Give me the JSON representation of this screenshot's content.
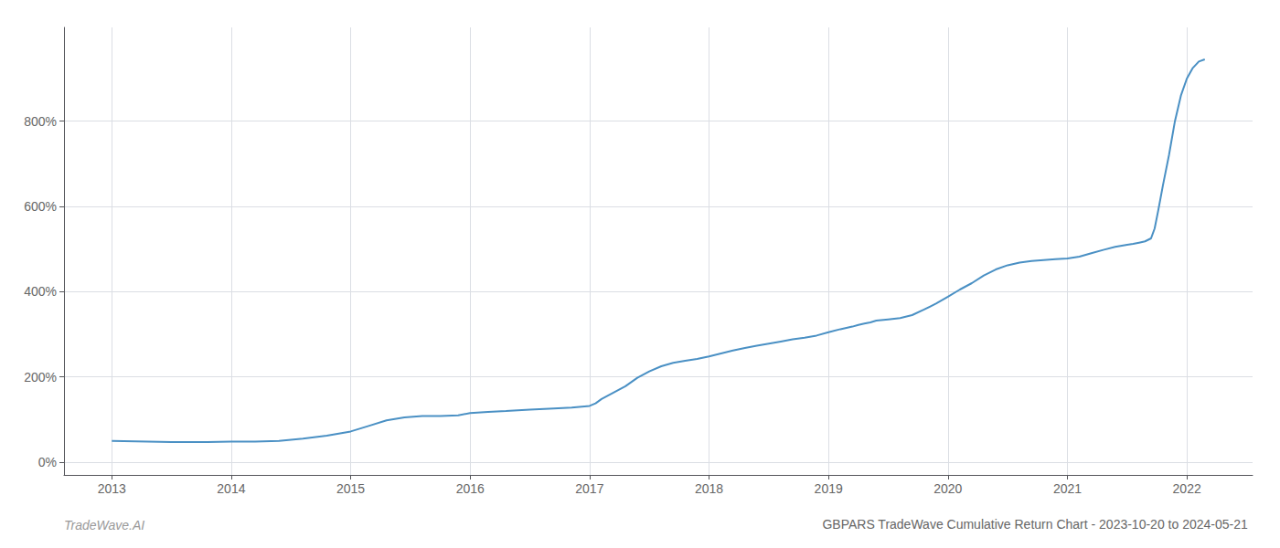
{
  "chart_data": {
    "type": "line",
    "title": "GBPARS TradeWave Cumulative Return Chart - 2023-10-20 to 2024-05-21",
    "annotations": [
      "TradeWave.AI"
    ],
    "color": "#4a90c4",
    "grid": true,
    "x": [
      2013.0,
      2013.2,
      2013.5,
      2013.8,
      2014.0,
      2014.2,
      2014.4,
      2014.6,
      2014.8,
      2015.0,
      2015.15,
      2015.3,
      2015.45,
      2015.6,
      2015.75,
      2015.9,
      2016.0,
      2016.15,
      2016.3,
      2016.5,
      2016.7,
      2016.85,
      2017.0,
      2017.05,
      2017.1,
      2017.2,
      2017.3,
      2017.4,
      2017.5,
      2017.6,
      2017.7,
      2017.8,
      2017.9,
      2018.0,
      2018.1,
      2018.2,
      2018.3,
      2018.4,
      2018.5,
      2018.6,
      2018.7,
      2018.8,
      2018.9,
      2019.0,
      2019.1,
      2019.2,
      2019.25,
      2019.3,
      2019.35,
      2019.4,
      2019.5,
      2019.6,
      2019.7,
      2019.8,
      2019.9,
      2020.0,
      2020.1,
      2020.2,
      2020.3,
      2020.4,
      2020.5,
      2020.6,
      2020.7,
      2020.8,
      2020.9,
      2021.0,
      2021.1,
      2021.2,
      2021.3,
      2021.4,
      2021.5,
      2021.55,
      2021.6,
      2021.65,
      2021.7,
      2021.73,
      2021.76,
      2021.8,
      2021.85,
      2021.9,
      2021.95,
      2022.0,
      2022.05,
      2022.1,
      2022.15
    ],
    "values": [
      50,
      49,
      47,
      47,
      48,
      48,
      50,
      55,
      62,
      72,
      85,
      98,
      105,
      108,
      108,
      110,
      115,
      118,
      120,
      123,
      126,
      128,
      132,
      138,
      148,
      163,
      178,
      198,
      213,
      225,
      233,
      238,
      242,
      248,
      255,
      262,
      268,
      273,
      278,
      283,
      288,
      292,
      297,
      305,
      312,
      318,
      322,
      325,
      328,
      332,
      335,
      338,
      345,
      358,
      372,
      388,
      405,
      420,
      438,
      452,
      462,
      468,
      472,
      474,
      476,
      478,
      482,
      490,
      498,
      505,
      510,
      512,
      515,
      518,
      525,
      548,
      590,
      650,
      720,
      800,
      860,
      900,
      925,
      940,
      945
    ],
    "xlim": [
      2012.6,
      2022.55
    ],
    "xticks": [
      2013,
      2014,
      2015,
      2016,
      2017,
      2018,
      2019,
      2020,
      2021,
      2022
    ],
    "ylim": [
      -30,
      1020
    ],
    "yticks": [
      {
        "value": 0,
        "label": "0%"
      },
      {
        "value": 200,
        "label": "200%"
      },
      {
        "value": 400,
        "label": "400%"
      },
      {
        "value": 600,
        "label": "600%"
      },
      {
        "value": 800,
        "label": "800%"
      }
    ]
  }
}
